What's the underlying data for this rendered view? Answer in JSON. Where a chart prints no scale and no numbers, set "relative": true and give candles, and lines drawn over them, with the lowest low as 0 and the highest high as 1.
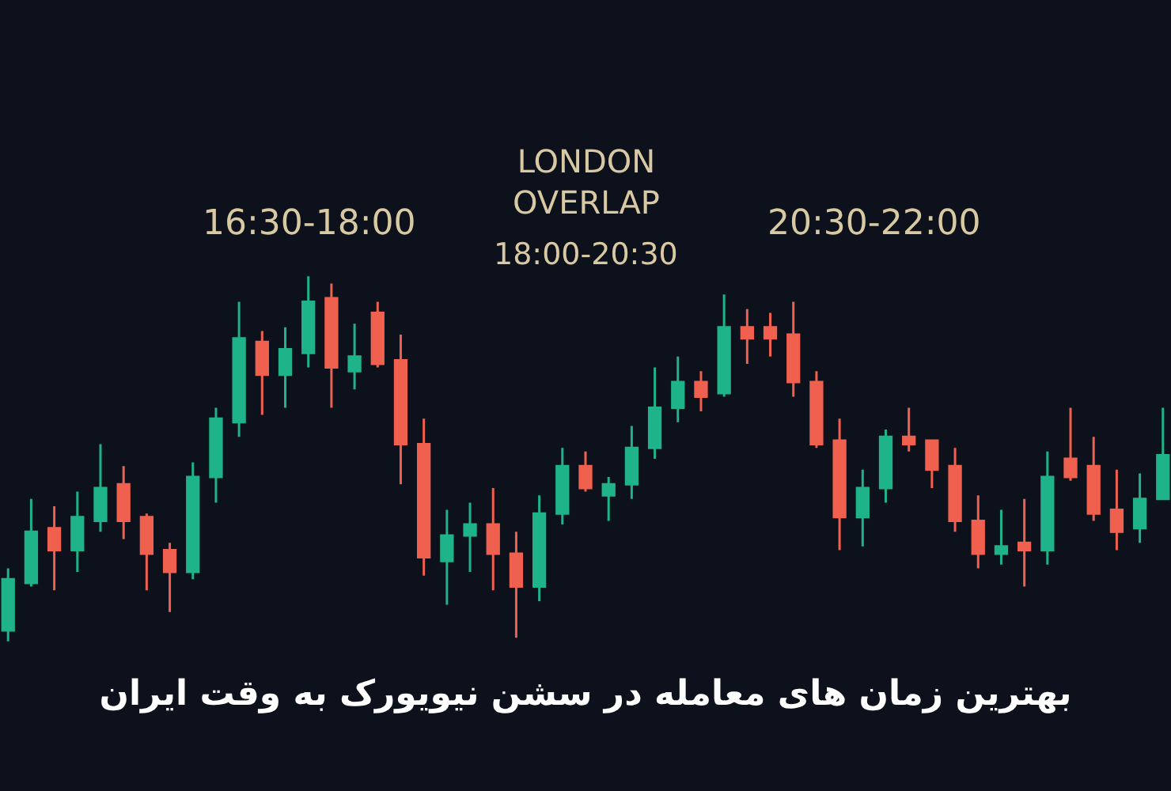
{
  "chart_data": {
    "type": "candlestick",
    "title": "بهترین زمان های معامله در سشن نیویورک به وقت ایران",
    "relative": true,
    "annotations": [
      "16:30-18:00",
      "LONDON\nOVERLAP",
      "18:00-20:30",
      "20:30-22:00"
    ],
    "categories": [
      null,
      null,
      null,
      null,
      null,
      null,
      null,
      null,
      null,
      null,
      null,
      null,
      null,
      null,
      null,
      null,
      null,
      null,
      null,
      null,
      null,
      null,
      null,
      null,
      null,
      null,
      null,
      null,
      null,
      null,
      null,
      null,
      null,
      null,
      null,
      null,
      null,
      null,
      null,
      null,
      null,
      null,
      null,
      null,
      null,
      null,
      null,
      null,
      null,
      null,
      null
    ],
    "colors": [
      "#1fb389",
      "#1fb389",
      "#f0604e",
      "#1fb389",
      "#1fb389",
      "#f0604e",
      "#f0604e",
      "#f0604e",
      "#1fb389",
      "#1fb389",
      "#1fb389",
      "#f0604e",
      "#1fb389",
      "#1fb389",
      "#f0604e",
      "#1fb389",
      "#f0604e",
      "#f0604e",
      "#f0604e",
      "#1fb389",
      "#1fb389",
      "#f0604e",
      "#f0604e",
      "#1fb389",
      "#1fb389",
      "#f0604e",
      "#1fb389",
      "#1fb389",
      "#1fb389",
      "#1fb389",
      "#f0604e",
      "#1fb389",
      "#f0604e",
      "#f0604e",
      "#f0604e",
      "#f0604e",
      "#f0604e",
      "#1fb389",
      "#1fb389",
      "#f0604e",
      "#f0604e",
      "#f0604e",
      "#f0604e",
      "#1fb389",
      "#f0604e",
      "#1fb389",
      "#f0604e",
      "#f0604e",
      "#f0604e",
      "#1fb389",
      "#1fb389"
    ],
    "ohlc": [
      [
        0.03,
        0.2,
        0.0,
        0.17
      ],
      [
        0.16,
        0.39,
        0.15,
        0.3
      ],
      [
        0.31,
        0.37,
        0.14,
        0.25
      ],
      [
        0.25,
        0.41,
        0.19,
        0.34
      ],
      [
        0.33,
        0.54,
        0.3,
        0.42
      ],
      [
        0.43,
        0.48,
        0.28,
        0.33
      ],
      [
        0.34,
        0.35,
        0.14,
        0.24
      ],
      [
        0.25,
        0.27,
        0.08,
        0.19
      ],
      [
        0.19,
        0.49,
        0.17,
        0.45
      ],
      [
        0.45,
        0.64,
        0.38,
        0.61
      ],
      [
        0.6,
        0.93,
        0.56,
        0.83
      ],
      [
        0.82,
        0.85,
        0.62,
        0.73
      ],
      [
        0.73,
        0.86,
        0.64,
        0.8
      ],
      [
        0.79,
        1.0,
        0.75,
        0.93
      ],
      [
        0.94,
        0.98,
        0.64,
        0.75
      ],
      [
        0.74,
        0.87,
        0.69,
        0.78
      ],
      [
        0.9,
        0.93,
        0.75,
        0.76
      ],
      [
        0.77,
        0.84,
        0.43,
        0.54
      ],
      [
        0.54,
        0.61,
        0.18,
        0.23
      ],
      [
        0.22,
        0.36,
        0.1,
        0.29
      ],
      [
        0.29,
        0.38,
        0.19,
        0.32
      ],
      [
        0.32,
        0.42,
        0.14,
        0.24
      ],
      [
        0.24,
        0.3,
        0.01,
        0.15
      ],
      [
        0.15,
        0.4,
        0.11,
        0.35
      ],
      [
        0.35,
        0.53,
        0.32,
        0.48
      ],
      [
        0.48,
        0.52,
        0.41,
        0.42
      ],
      [
        0.4,
        0.45,
        0.33,
        0.43
      ],
      [
        0.43,
        0.59,
        0.39,
        0.53
      ],
      [
        0.53,
        0.75,
        0.5,
        0.64
      ],
      [
        0.64,
        0.78,
        0.6,
        0.71
      ],
      [
        0.71,
        0.74,
        0.63,
        0.67
      ],
      [
        0.68,
        0.95,
        0.67,
        0.86
      ],
      [
        0.86,
        0.91,
        0.76,
        0.83
      ],
      [
        0.86,
        0.9,
        0.78,
        0.83
      ],
      [
        0.84,
        0.93,
        0.67,
        0.71
      ],
      [
        0.71,
        0.74,
        0.53,
        0.54
      ],
      [
        0.55,
        0.61,
        0.25,
        0.34
      ],
      [
        0.34,
        0.47,
        0.26,
        0.42
      ],
      [
        0.42,
        0.58,
        0.38,
        0.56
      ],
      [
        0.56,
        0.64,
        0.52,
        0.54
      ],
      [
        0.55,
        0.55,
        0.42,
        0.47
      ],
      [
        0.48,
        0.53,
        0.3,
        0.33
      ],
      [
        0.33,
        0.4,
        0.2,
        0.24
      ],
      [
        0.24,
        0.36,
        0.21,
        0.26
      ],
      [
        0.27,
        0.39,
        0.15,
        0.25
      ],
      [
        0.25,
        0.52,
        0.21,
        0.45
      ],
      [
        0.5,
        0.64,
        0.44,
        0.45
      ],
      [
        0.48,
        0.56,
        0.33,
        0.35
      ],
      [
        0.36,
        0.47,
        0.25,
        0.3
      ],
      [
        0.31,
        0.46,
        0.27,
        0.39
      ],
      [
        0.39,
        0.64,
        0.39,
        0.51
      ]
    ]
  }
}
